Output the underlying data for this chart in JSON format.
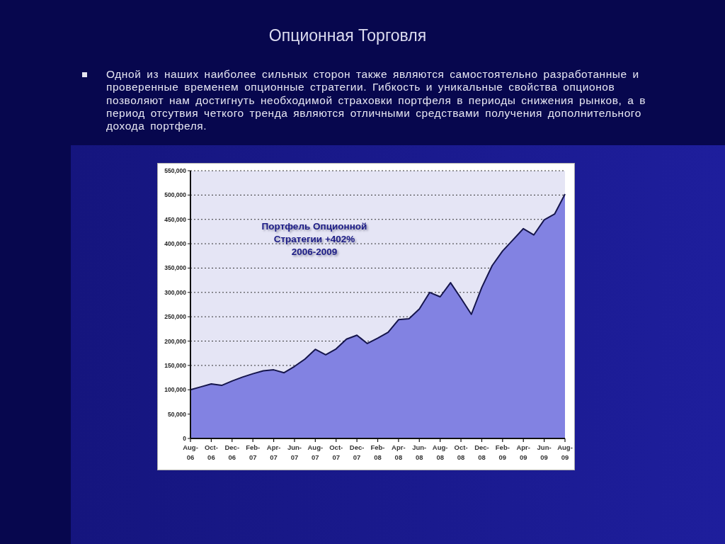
{
  "chart_data": {
    "type": "area",
    "title": "Опционная Торговля",
    "subtitle": "Одной из наших наиболее сильных сторон также являются самостоятельно разработанные и проверенные временем опционные стратегии. Гибкость и уникальные свойства опционов позволяют нам достигнуть необходимой страховки портфеля в периоды снижения рынков, а в период отсутвия четкого тренда являются отличными средствами получения дополнительного дохода портфеля.",
    "annotations": [
      "Портфель Опционной Стратегии +402% 2006-2009"
    ],
    "categories": [
      "Aug-06",
      null,
      "Oct-06",
      null,
      "Dec-06",
      null,
      "Feb-07",
      null,
      "Apr-07",
      null,
      "Jun-07",
      null,
      "Aug-07",
      null,
      "Oct-07",
      null,
      "Dec-07",
      null,
      "Feb-08",
      null,
      "Apr-08",
      null,
      "Jun-08",
      null,
      "Aug-08",
      null,
      "Oct-08",
      null,
      "Dec-08",
      null,
      "Feb-09",
      null,
      "Apr-09",
      null,
      "Jun-09",
      null,
      "Aug-09"
    ],
    "values": [
      100000,
      106000,
      112000,
      109000,
      118000,
      126000,
      133000,
      139000,
      141000,
      135000,
      148000,
      163000,
      183000,
      172000,
      184000,
      204000,
      212000,
      195000,
      206000,
      218000,
      244000,
      246000,
      266000,
      300000,
      291000,
      320000,
      288000,
      255000,
      310000,
      355000,
      385000,
      408000,
      431000,
      418000,
      449000,
      461000,
      502000
    ],
    "color": "#8282e2",
    "ylim": [
      0,
      550000
    ],
    "yticks": [
      {
        "value": 0,
        "label": "0"
      },
      {
        "value": 50000,
        "label": "50,000"
      },
      {
        "value": 100000,
        "label": "100,000"
      },
      {
        "value": 150000,
        "label": "150,000"
      },
      {
        "value": 200000,
        "label": "200,000"
      },
      {
        "value": 250000,
        "label": "250,000"
      },
      {
        "value": 300000,
        "label": "300,000"
      },
      {
        "value": 350000,
        "label": "350,000"
      },
      {
        "value": 400000,
        "label": "400,000"
      },
      {
        "value": 450000,
        "label": "450,000"
      },
      {
        "value": 500000,
        "label": "500,000"
      },
      {
        "value": 550000,
        "label": "550,000"
      }
    ],
    "grid": "y"
  }
}
